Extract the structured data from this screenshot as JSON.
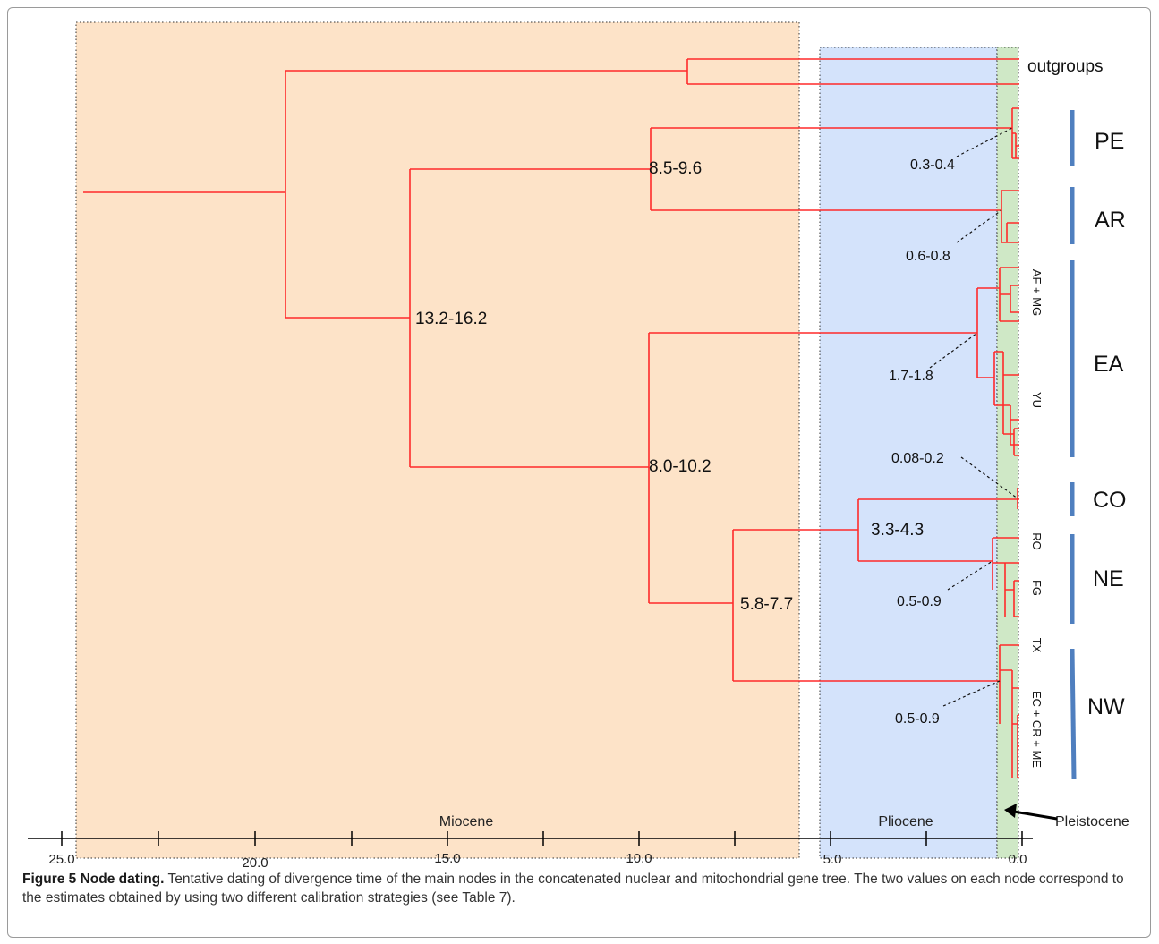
{
  "periods": [
    {
      "label": "Miocene",
      "color": "#fde3c8"
    },
    {
      "label": "Pliocene",
      "color": "#d4e3fb"
    },
    {
      "label": "Pleistocene",
      "color": "#cfe8c6"
    }
  ],
  "axis": {
    "ticks": [
      "25.0",
      "20.0",
      "15.0",
      "10.0",
      "5.0",
      "0.0"
    ]
  },
  "tree": {
    "branch_color": "#ff2a2a",
    "outgroups_label": "outgroups",
    "node_ages": {
      "n1": "13.2-16.2",
      "n2": "8.5-9.6",
      "n3": "8.0-10.2",
      "n4": "5.8-7.7",
      "n5": "3.3-4.3"
    },
    "tip_ages": {
      "pe": "0.3-0.4",
      "ar": "0.6-0.8",
      "ea": "1.7-1.8",
      "co": "0.08-0.2",
      "ne": "0.5-0.9",
      "nw": "0.5-0.9"
    },
    "subclades": {
      "afmg": "AF + MG",
      "yu": "YU",
      "ro": "RO",
      "fg": "FG",
      "tx": "TX",
      "eccrme": "EC + CR + ME"
    }
  },
  "clades": {
    "bar_color": "#4f7fbf",
    "pe": "PE",
    "ar": "AR",
    "ea": "EA",
    "co": "CO",
    "ne": "NE",
    "nw": "NW"
  },
  "caption": {
    "title": "Figure 5 Node dating.",
    "text": "Tentative dating of divergence time of the main nodes in the concatenated nuclear and mitochondrial gene tree. The two values on each node correspond to the estimates obtained by using two different calibration strategies (see Table 7)."
  }
}
